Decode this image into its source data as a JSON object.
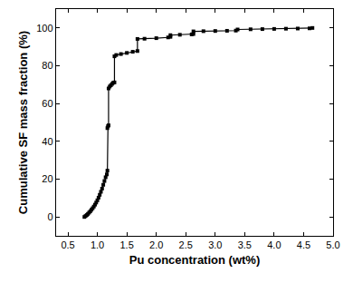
{
  "chart_data": {
    "type": "line",
    "x_label": "Pu concentration (wt%)",
    "y_label": "Cumulative SF mass fraction (%)",
    "x": [
      0.78,
      0.8,
      0.82,
      0.84,
      0.86,
      0.88,
      0.9,
      0.92,
      0.94,
      0.96,
      0.98,
      1.0,
      1.02,
      1.04,
      1.06,
      1.08,
      1.1,
      1.12,
      1.14,
      1.16,
      1.17,
      1.17,
      1.18,
      1.19,
      1.19,
      1.21,
      1.23,
      1.25,
      1.27,
      1.29,
      1.29,
      1.32,
      1.4,
      1.5,
      1.6,
      1.68,
      1.68,
      1.8,
      2.0,
      2.2,
      2.24,
      2.24,
      2.4,
      2.6,
      2.63,
      2.63,
      2.8,
      3.0,
      3.2,
      3.35,
      3.38,
      3.6,
      3.8,
      4.0,
      4.2,
      4.4,
      4.6,
      4.65
    ],
    "values": [
      0,
      0.5,
      1,
      1.6,
      2.3,
      3,
      3.8,
      4.6,
      5.5,
      6.5,
      7.6,
      8.8,
      10.2,
      11.7,
      13.3,
      15,
      17,
      19,
      21,
      22.5,
      24.5,
      47,
      48,
      48.5,
      68,
      69,
      69.7,
      70.4,
      71,
      71.2,
      85,
      85.7,
      86.2,
      86.8,
      87.4,
      87.8,
      94.2,
      94.3,
      94.6,
      95,
      95.3,
      96.2,
      96.4,
      96.6,
      96.8,
      98.2,
      98.3,
      98.4,
      98.5,
      98.6,
      99.2,
      99.3,
      99.4,
      99.5,
      99.6,
      99.7,
      99.8,
      100
    ],
    "color": "#000000",
    "marker": "square",
    "line_style": "solid",
    "xlim": [
      0.3,
      5.0
    ],
    "ylim": [
      -10,
      110
    ],
    "xticks": [
      0.5,
      {
        "value": 1,
        "label": "1.0"
      },
      1.5,
      {
        "value": 2,
        "label": "2.0"
      },
      2.5,
      {
        "value": 3,
        "label": "3.0"
      },
      3.5,
      {
        "value": 4,
        "label": "4.0"
      },
      4.5,
      {
        "value": 5,
        "label": "5.0"
      }
    ],
    "yticks": [
      0,
      20,
      40,
      60,
      80,
      100
    ],
    "grid": false
  }
}
